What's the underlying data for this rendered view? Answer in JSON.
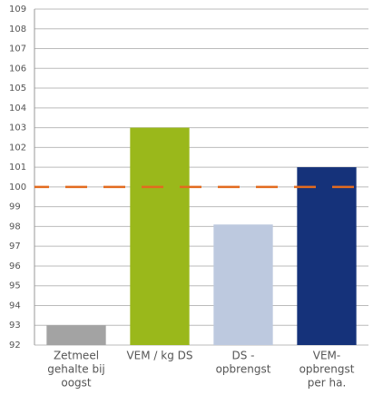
{
  "chart_data": {
    "type": "bar",
    "categories": [
      [
        "Zetmeel",
        "gehalte bij",
        "oogst"
      ],
      [
        "VEM / kg DS"
      ],
      [
        "DS -",
        "opbrengst"
      ],
      [
        "VEM-",
        "opbrengst",
        "per ha."
      ]
    ],
    "values": [
      93,
      103,
      98.1,
      101
    ],
    "colors": [
      "#a3a3a3",
      "#9ab81b",
      "#bdc9df",
      "#15327a"
    ],
    "ylim": [
      92,
      109
    ],
    "yticks": [
      92,
      93,
      94,
      95,
      96,
      97,
      98,
      99,
      100,
      101,
      102,
      103,
      104,
      105,
      106,
      107,
      108,
      109
    ],
    "grid": true,
    "reference_line": {
      "value": 100,
      "color": "#e26b1f",
      "style": "dashed"
    }
  }
}
